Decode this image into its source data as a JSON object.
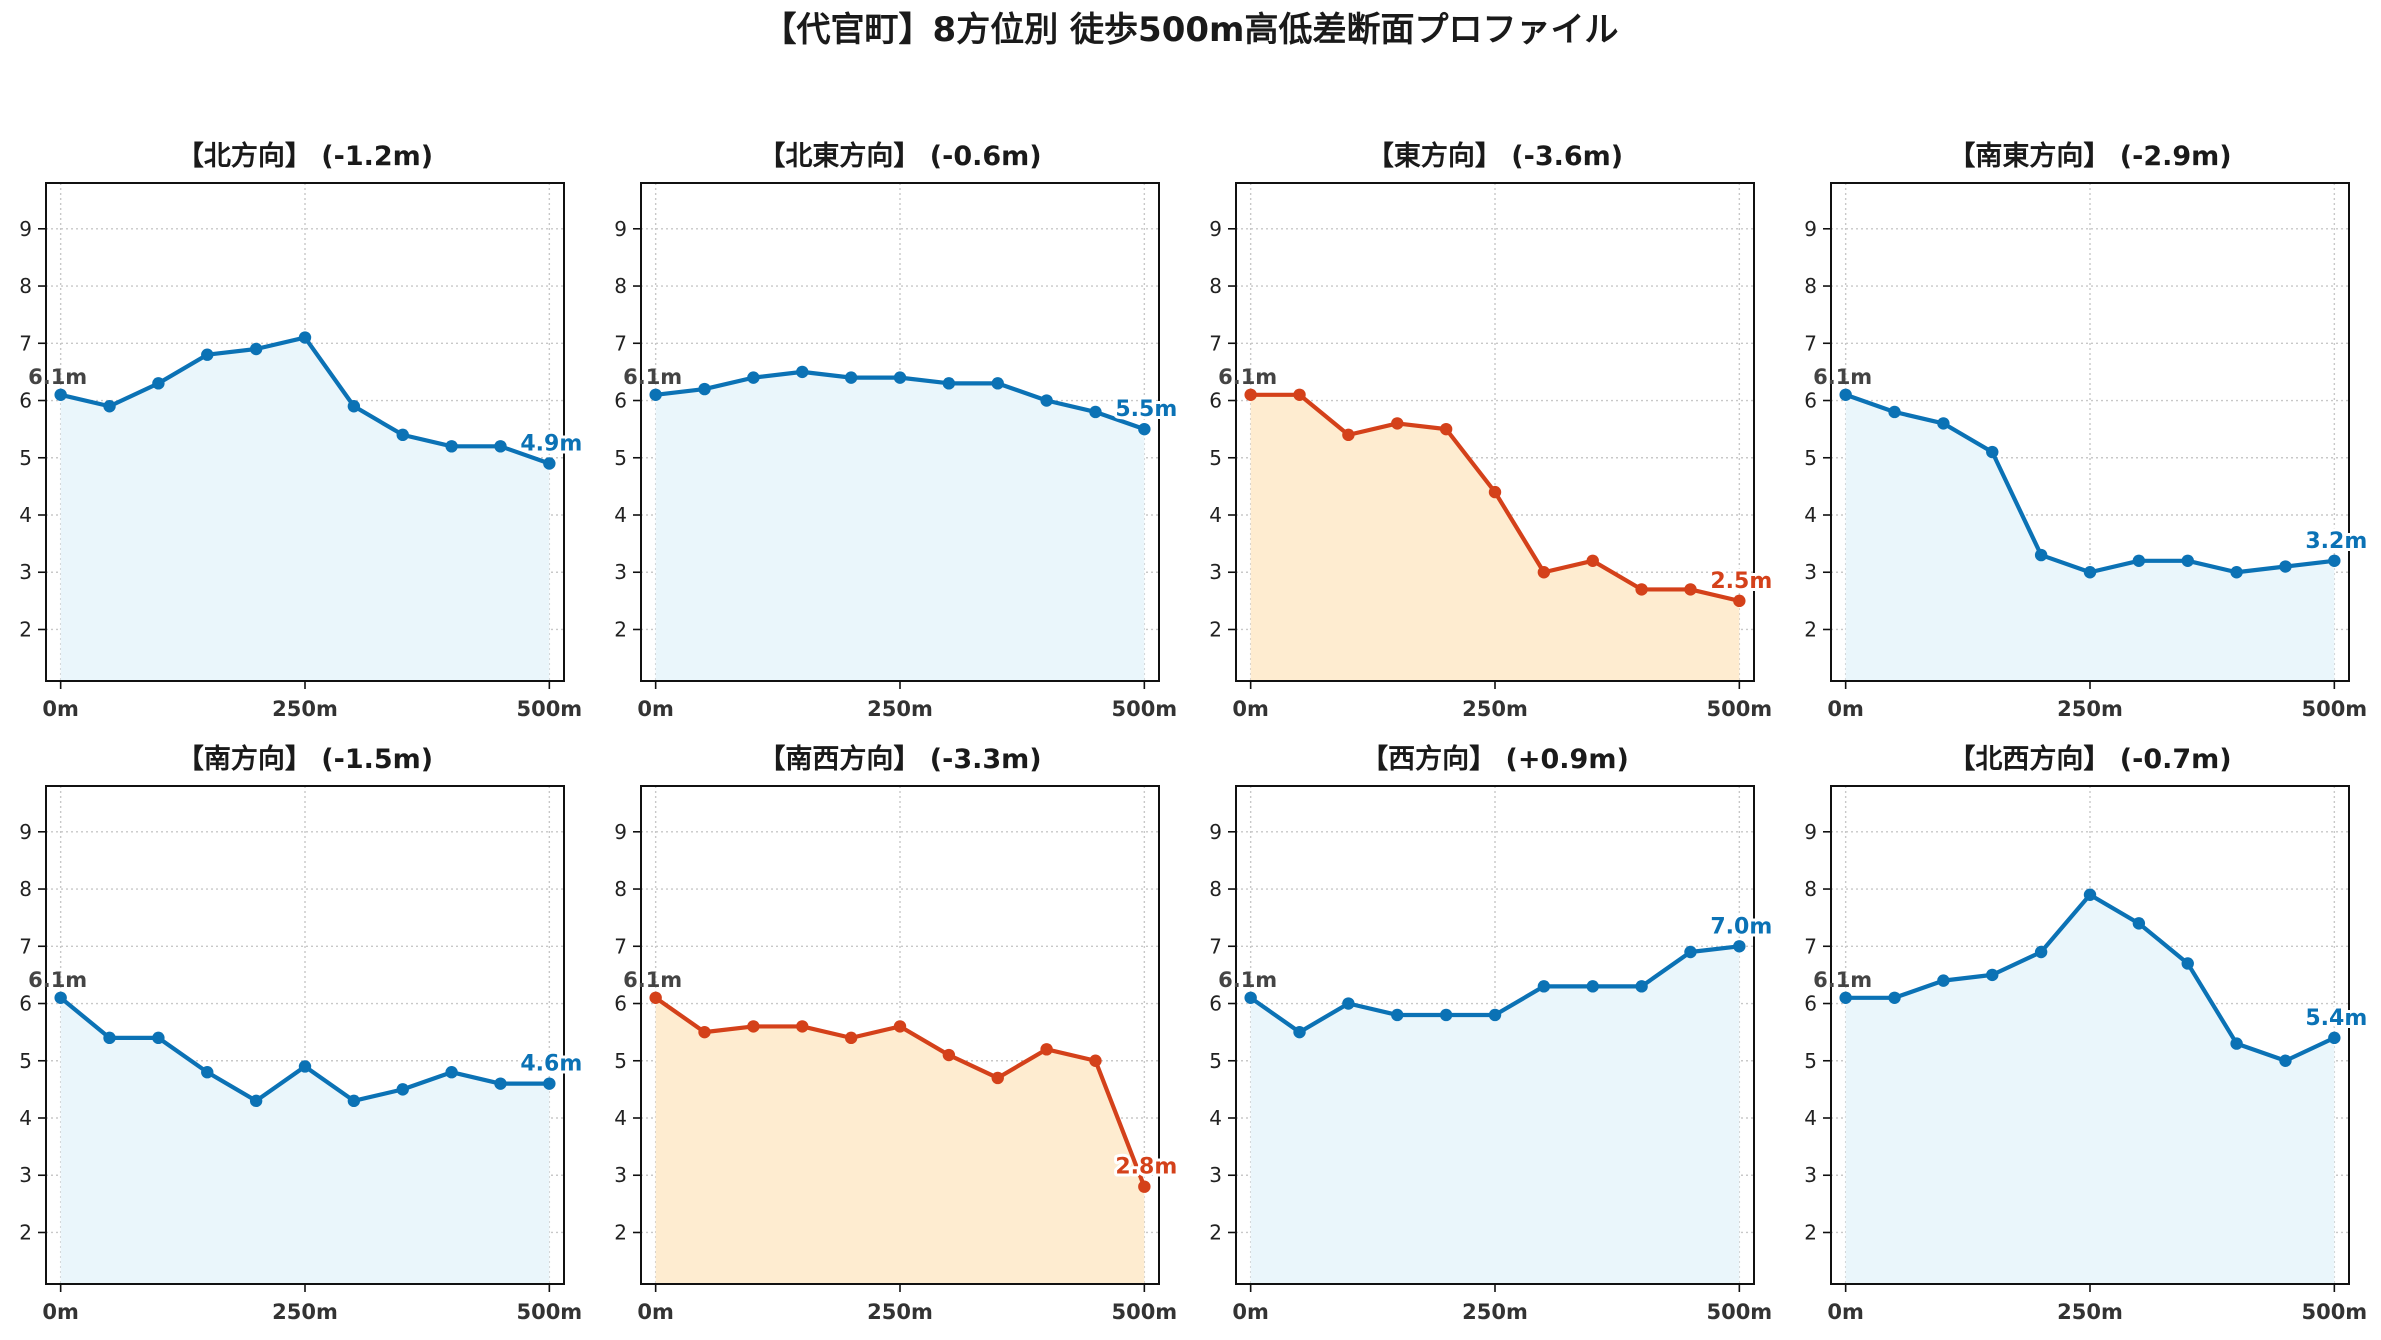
{
  "title": "【代官町】8方位別 徒歩500m高低差断面プロファイル",
  "colors": {
    "up_line": "#0b72b5",
    "up_fill": "#eaf6fb",
    "down_line": "#d4411a",
    "down_fill": "#feecd0",
    "grid": "#c8c8c8",
    "axis": "#111111"
  },
  "chart_data": [
    {
      "type": "area",
      "title": "【北方向】 (-1.2m)",
      "x": [
        0,
        50,
        100,
        150,
        200,
        250,
        300,
        350,
        400,
        450,
        500
      ],
      "y": [
        6.1,
        5.9,
        6.3,
        6.8,
        6.9,
        7.1,
        5.9,
        5.4,
        5.2,
        5.2,
        4.9
      ],
      "xticks": [
        0,
        250,
        500
      ],
      "xtick_labels": [
        "0m",
        "250m",
        "500m"
      ],
      "yticks": [
        2,
        3,
        4,
        5,
        6,
        7,
        8,
        9
      ],
      "ytick_labels": [
        "2",
        "3",
        "4",
        "5",
        "6",
        "7",
        "8",
        "9"
      ],
      "xlim": [
        -15,
        515
      ],
      "ylim": [
        1.1,
        9.8
      ],
      "grid": true,
      "start_label": "6.1m",
      "end_label": "4.9m",
      "style": "blue"
    },
    {
      "type": "area",
      "title": "【北東方向】 (-0.6m)",
      "x": [
        0,
        50,
        100,
        150,
        200,
        250,
        300,
        350,
        400,
        450,
        500
      ],
      "y": [
        6.1,
        6.2,
        6.4,
        6.5,
        6.4,
        6.4,
        6.3,
        6.3,
        6.0,
        5.8,
        5.5
      ],
      "xticks": [
        0,
        250,
        500
      ],
      "xtick_labels": [
        "0m",
        "250m",
        "500m"
      ],
      "yticks": [
        2,
        3,
        4,
        5,
        6,
        7,
        8,
        9
      ],
      "ytick_labels": [
        "2",
        "3",
        "4",
        "5",
        "6",
        "7",
        "8",
        "9"
      ],
      "xlim": [
        -15,
        515
      ],
      "ylim": [
        1.1,
        9.8
      ],
      "grid": true,
      "start_label": "6.1m",
      "end_label": "5.5m",
      "style": "blue"
    },
    {
      "type": "area",
      "title": "【東方向】 (-3.6m)",
      "x": [
        0,
        50,
        100,
        150,
        200,
        250,
        300,
        350,
        400,
        450,
        500
      ],
      "y": [
        6.1,
        6.1,
        5.4,
        5.6,
        5.5,
        4.4,
        3.0,
        3.2,
        2.7,
        2.7,
        2.5
      ],
      "xticks": [
        0,
        250,
        500
      ],
      "xtick_labels": [
        "0m",
        "250m",
        "500m"
      ],
      "yticks": [
        2,
        3,
        4,
        5,
        6,
        7,
        8,
        9
      ],
      "ytick_labels": [
        "2",
        "3",
        "4",
        "5",
        "6",
        "7",
        "8",
        "9"
      ],
      "xlim": [
        -15,
        515
      ],
      "ylim": [
        1.1,
        9.8
      ],
      "grid": true,
      "start_label": "6.1m",
      "end_label": "2.5m",
      "style": "red"
    },
    {
      "type": "area",
      "title": "【南東方向】 (-2.9m)",
      "x": [
        0,
        50,
        100,
        150,
        200,
        250,
        300,
        350,
        400,
        450,
        500
      ],
      "y": [
        6.1,
        5.8,
        5.6,
        5.1,
        3.3,
        3.0,
        3.2,
        3.2,
        3.0,
        3.1,
        3.2
      ],
      "xticks": [
        0,
        250,
        500
      ],
      "xtick_labels": [
        "0m",
        "250m",
        "500m"
      ],
      "yticks": [
        2,
        3,
        4,
        5,
        6,
        7,
        8,
        9
      ],
      "ytick_labels": [
        "2",
        "3",
        "4",
        "5",
        "6",
        "7",
        "8",
        "9"
      ],
      "xlim": [
        -15,
        515
      ],
      "ylim": [
        1.1,
        9.8
      ],
      "grid": true,
      "start_label": "6.1m",
      "end_label": "3.2m",
      "style": "blue"
    },
    {
      "type": "area",
      "title": "【南方向】 (-1.5m)",
      "x": [
        0,
        50,
        100,
        150,
        200,
        250,
        300,
        350,
        400,
        450,
        500
      ],
      "y": [
        6.1,
        5.4,
        5.4,
        4.8,
        4.3,
        4.9,
        4.3,
        4.5,
        4.8,
        4.6,
        4.6
      ],
      "xticks": [
        0,
        250,
        500
      ],
      "xtick_labels": [
        "0m",
        "250m",
        "500m"
      ],
      "yticks": [
        2,
        3,
        4,
        5,
        6,
        7,
        8,
        9
      ],
      "ytick_labels": [
        "2",
        "3",
        "4",
        "5",
        "6",
        "7",
        "8",
        "9"
      ],
      "xlim": [
        -15,
        515
      ],
      "ylim": [
        1.1,
        9.8
      ],
      "grid": true,
      "start_label": "6.1m",
      "end_label": "4.6m",
      "style": "blue"
    },
    {
      "type": "area",
      "title": "【南西方向】 (-3.3m)",
      "x": [
        0,
        50,
        100,
        150,
        200,
        250,
        300,
        350,
        400,
        450,
        500
      ],
      "y": [
        6.1,
        5.5,
        5.6,
        5.6,
        5.4,
        5.6,
        5.1,
        4.7,
        5.2,
        5.0,
        2.8
      ],
      "xticks": [
        0,
        250,
        500
      ],
      "xtick_labels": [
        "0m",
        "250m",
        "500m"
      ],
      "yticks": [
        2,
        3,
        4,
        5,
        6,
        7,
        8,
        9
      ],
      "ytick_labels": [
        "2",
        "3",
        "4",
        "5",
        "6",
        "7",
        "8",
        "9"
      ],
      "xlim": [
        -15,
        515
      ],
      "ylim": [
        1.1,
        9.8
      ],
      "grid": true,
      "start_label": "6.1m",
      "end_label": "2.8m",
      "style": "red"
    },
    {
      "type": "area",
      "title": "【西方向】 (+0.9m)",
      "x": [
        0,
        50,
        100,
        150,
        200,
        250,
        300,
        350,
        400,
        450,
        500
      ],
      "y": [
        6.1,
        5.5,
        6.0,
        5.8,
        5.8,
        5.8,
        6.3,
        6.3,
        6.3,
        6.9,
        7.0
      ],
      "xticks": [
        0,
        250,
        500
      ],
      "xtick_labels": [
        "0m",
        "250m",
        "500m"
      ],
      "yticks": [
        2,
        3,
        4,
        5,
        6,
        7,
        8,
        9
      ],
      "ytick_labels": [
        "2",
        "3",
        "4",
        "5",
        "6",
        "7",
        "8",
        "9"
      ],
      "xlim": [
        -15,
        515
      ],
      "ylim": [
        1.1,
        9.8
      ],
      "grid": true,
      "start_label": "6.1m",
      "end_label": "7.0m",
      "style": "blue"
    },
    {
      "type": "area",
      "title": "【北西方向】 (-0.7m)",
      "x": [
        0,
        50,
        100,
        150,
        200,
        250,
        300,
        350,
        400,
        450,
        500
      ],
      "y": [
        6.1,
        6.1,
        6.4,
        6.5,
        6.9,
        7.9,
        7.4,
        6.7,
        5.3,
        5.0,
        5.4
      ],
      "xticks": [
        0,
        250,
        500
      ],
      "xtick_labels": [
        "0m",
        "250m",
        "500m"
      ],
      "yticks": [
        2,
        3,
        4,
        5,
        6,
        7,
        8,
        9
      ],
      "ytick_labels": [
        "2",
        "3",
        "4",
        "5",
        "6",
        "7",
        "8",
        "9"
      ],
      "xlim": [
        -15,
        515
      ],
      "ylim": [
        1.1,
        9.8
      ],
      "grid": true,
      "start_label": "6.1m",
      "end_label": "5.4m",
      "style": "blue"
    }
  ]
}
